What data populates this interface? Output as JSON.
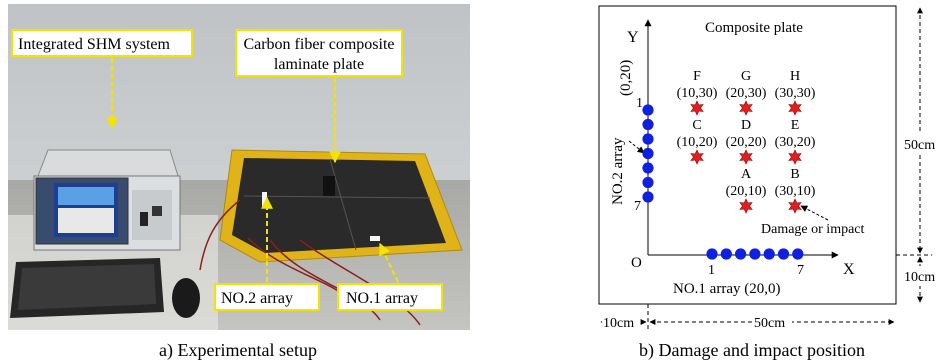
{
  "panel_a": {
    "caption": "a) Experimental setup",
    "labels": {
      "shm_system": "Integrated SHM system",
      "plate_line1": "Carbon fiber composite",
      "plate_line2": "laminate plate",
      "no2_array": "NO.2 array",
      "no1_array": "NO.1 array"
    },
    "callout_color": "#f2e400"
  },
  "panel_b": {
    "caption": "b) Damage and impact position",
    "plate_label": "Composite plate",
    "axis_x": "X",
    "axis_y": "Y",
    "origin": "O",
    "damage_points": [
      {
        "id": "F",
        "coord": "(10,30)",
        "x": 10,
        "y": 30
      },
      {
        "id": "G",
        "coord": "(20,30)",
        "x": 20,
        "y": 30
      },
      {
        "id": "H",
        "coord": "(30,30)",
        "x": 30,
        "y": 30
      },
      {
        "id": "C",
        "coord": "(10,20)",
        "x": 10,
        "y": 20
      },
      {
        "id": "D",
        "coord": "(20,20)",
        "x": 20,
        "y": 20
      },
      {
        "id": "E",
        "coord": "(30,20)",
        "x": 30,
        "y": 20
      },
      {
        "id": "A",
        "coord": "(20,10)",
        "x": 20,
        "y": 10
      },
      {
        "id": "B",
        "coord": "(30,10)",
        "x": 30,
        "y": 10
      }
    ],
    "damage_label": "Damage or impact",
    "no1_array": {
      "label": "NO.1 array (20,0)",
      "start_num": "1",
      "end_num": "7",
      "count": 7
    },
    "no2_array": {
      "label": "NO.2 array",
      "coord": "(0,20)",
      "start_num": "1",
      "end_num": "7",
      "count": 7
    },
    "dims": {
      "right_top": "50cm",
      "right_bottom": "10cm",
      "bottom_left": "10cm",
      "bottom_main": "50cm"
    },
    "colors": {
      "sensor": "#1020e0",
      "damage": "#e02020"
    }
  }
}
